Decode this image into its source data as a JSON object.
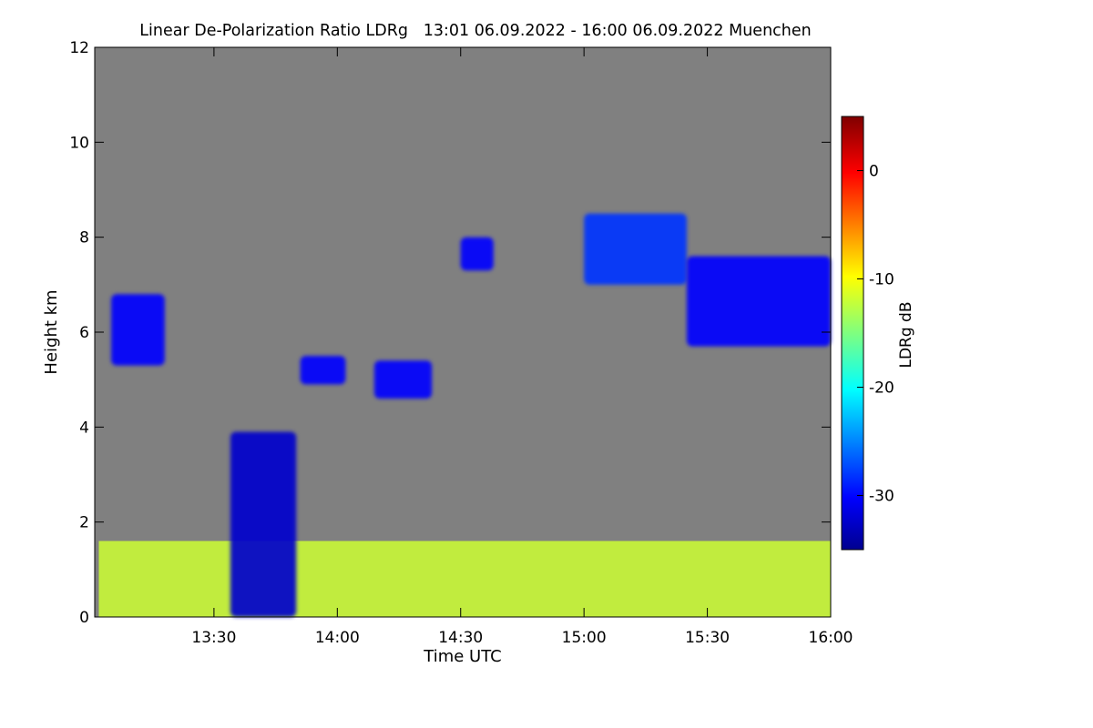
{
  "chart_data": {
    "type": "heatmap",
    "title": "Linear De-Polarization Ratio LDRg   13:01 06.09.2022 - 16:00 06.09.2022 Muenchen",
    "xlabel": "Time UTC",
    "ylabel": "Height km",
    "x_range": [
      "13:01",
      "16:00"
    ],
    "y_range": [
      0,
      12
    ],
    "x_ticks": [
      "13:30",
      "14:00",
      "14:30",
      "15:00",
      "15:30",
      "16:00"
    ],
    "y_ticks": [
      "0",
      "2",
      "4",
      "6",
      "8",
      "10",
      "12"
    ],
    "background_color": "#808080",
    "colorbar": {
      "label": "LDRg dB",
      "range": [
        -35,
        5
      ],
      "ticks": [
        "0",
        "-10",
        "-20",
        "-30"
      ],
      "colormap": "jet"
    },
    "features": [
      {
        "time_start": "13:02",
        "time_end": "16:00",
        "height_bottom": 0.0,
        "height_top": 1.6,
        "ldr_db": -12
      },
      {
        "time_start": "13:34",
        "time_end": "13:50",
        "height_bottom": 0.0,
        "height_top": 3.9,
        "ldr_db": -32
      },
      {
        "time_start": "13:05",
        "time_end": "13:18",
        "height_bottom": 5.3,
        "height_top": 6.8,
        "ldr_db": -30
      },
      {
        "time_start": "13:51",
        "time_end": "14:02",
        "height_bottom": 4.9,
        "height_top": 5.5,
        "ldr_db": -30
      },
      {
        "time_start": "14:09",
        "time_end": "14:23",
        "height_bottom": 4.6,
        "height_top": 5.4,
        "ldr_db": -30
      },
      {
        "time_start": "14:30",
        "time_end": "14:38",
        "height_bottom": 7.3,
        "height_top": 8.0,
        "ldr_db": -30
      },
      {
        "time_start": "15:00",
        "time_end": "15:25",
        "height_bottom": 7.0,
        "height_top": 8.5,
        "ldr_db": -28
      },
      {
        "time_start": "15:25",
        "time_end": "16:00",
        "height_bottom": 5.7,
        "height_top": 7.6,
        "ldr_db": -30
      }
    ]
  }
}
